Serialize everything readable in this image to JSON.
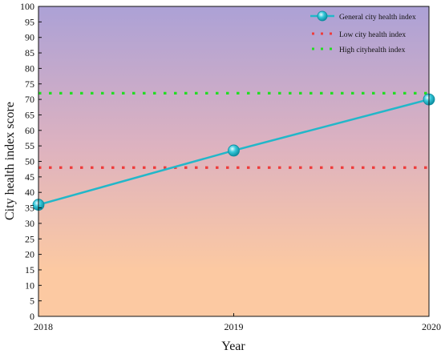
{
  "chart_data": {
    "type": "line",
    "title": "",
    "xlabel": "Year",
    "ylabel": "City health index score",
    "x": [
      "2018",
      "2019",
      "2020"
    ],
    "ylim": [
      0,
      100
    ],
    "yticks": [
      0,
      5,
      10,
      15,
      20,
      25,
      30,
      35,
      40,
      45,
      50,
      55,
      60,
      65,
      70,
      75,
      80,
      85,
      90,
      95,
      100
    ],
    "grid": false,
    "legend_position": "top-right",
    "background": {
      "gradient_top": "#aca1d6",
      "gradient_mid": "#ddb2c0",
      "gradient_bottom": "#fcc9a2"
    },
    "series": [
      {
        "name": "General city health index",
        "style": "solid-with-markers",
        "color": "#22b7c9",
        "values": [
          36,
          53.5,
          70
        ]
      },
      {
        "name": "Low city health index",
        "style": "dotted",
        "color": "#ee3b3b",
        "values": [
          48,
          48,
          48
        ]
      },
      {
        "name": "High cityhealth index",
        "style": "dotted",
        "color": "#22dd22",
        "values": [
          72,
          72,
          72
        ]
      }
    ]
  }
}
